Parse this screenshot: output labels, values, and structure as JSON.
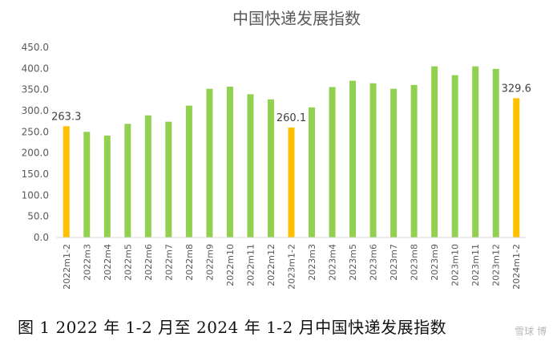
{
  "chart_data": {
    "type": "bar",
    "title": "中国快递发展指数",
    "categories": [
      "2022m1-2",
      "2022m3",
      "2022m4",
      "2022m5",
      "2022m6",
      "2022m7",
      "2022m8",
      "2022m9",
      "2022m10",
      "2022m11",
      "2022m12",
      "2023m1-2",
      "2023m3",
      "2023m4",
      "2023m5",
      "2023m6",
      "2023m7",
      "2023m8",
      "2023m9",
      "2023m10",
      "2023m11",
      "2023m12",
      "2024m1-2"
    ],
    "values": [
      263.3,
      250,
      241,
      269,
      289,
      274,
      312,
      352,
      357,
      339,
      327,
      260.1,
      308,
      356,
      371,
      365,
      352,
      361,
      405,
      384,
      405,
      399,
      329.6
    ],
    "highlight": [
      true,
      false,
      false,
      false,
      false,
      false,
      false,
      false,
      false,
      false,
      false,
      true,
      false,
      false,
      false,
      false,
      false,
      false,
      false,
      false,
      false,
      false,
      true
    ],
    "data_labels": {
      "0": "263.3",
      "11": "260.1",
      "22": "329.6"
    },
    "yticks": [
      "0.0",
      "50.0",
      "100.0",
      "150.0",
      "200.0",
      "250.0",
      "300.0",
      "350.0",
      "400.0",
      "450.0"
    ],
    "ylim": [
      0,
      450
    ],
    "grid": false,
    "colors": {
      "normal": "#92d050",
      "highlight": "#ffc000",
      "axis": "#d9d9d9",
      "text": "#595959"
    }
  },
  "caption": "图 1 2022 年 1-2 月至 2024 年 1-2 月中国快递发展指数",
  "watermark": "雪球 博"
}
